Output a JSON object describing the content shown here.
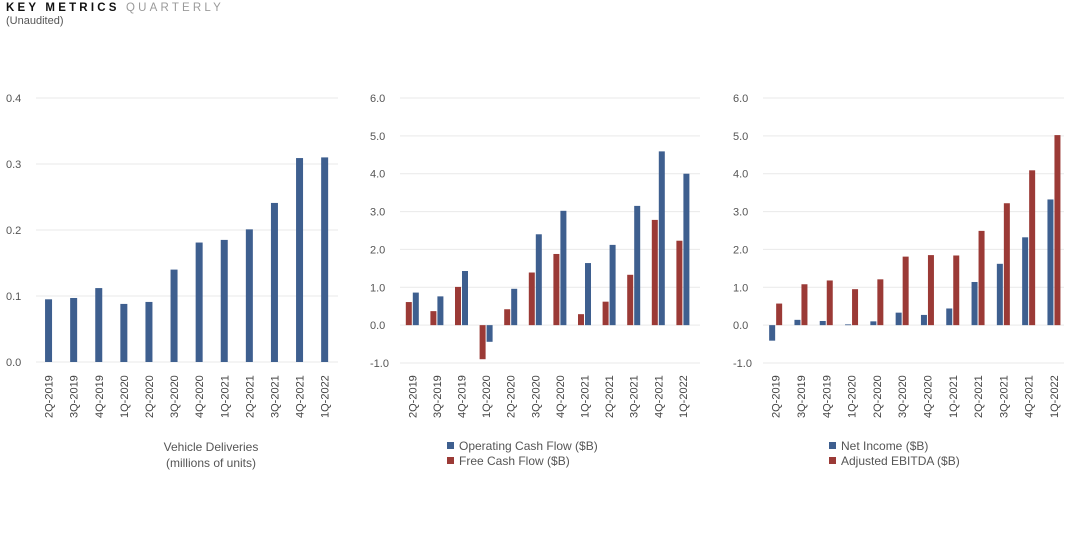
{
  "header": {
    "title_bold": "KEY METRICS",
    "title_light": "QUARTERLY",
    "subtitle": "(Unaudited)"
  },
  "colors": {
    "blue": "#3e5f8f",
    "red": "#9b3a36",
    "grid": "#e9e9e9"
  },
  "chart_data": [
    {
      "type": "bar",
      "categories": [
        "2Q-2019",
        "3Q-2019",
        "4Q-2019",
        "1Q-2020",
        "2Q-2020",
        "3Q-2020",
        "4Q-2020",
        "1Q-2021",
        "2Q-2021",
        "3Q-2021",
        "4Q-2021",
        "1Q-2022"
      ],
      "series": [
        {
          "name": "",
          "color": "#3e5f8f",
          "values": [
            0.095,
            0.097,
            0.112,
            0.088,
            0.091,
            0.14,
            0.181,
            0.185,
            0.201,
            0.241,
            0.309,
            0.31
          ]
        }
      ],
      "yticks": [
        "0.0",
        "0.1",
        "0.2",
        "0.3",
        "0.4"
      ],
      "ylim": [
        0,
        0.4
      ],
      "xlabel": [
        "Vehicle Deliveries",
        "(millions of units)"
      ],
      "grid": true
    },
    {
      "type": "bar",
      "categories": [
        "2Q-2019",
        "3Q-2019",
        "4Q-2019",
        "1Q-2020",
        "2Q-2020",
        "3Q-2020",
        "4Q-2020",
        "1Q-2021",
        "2Q-2021",
        "3Q-2021",
        "4Q-2021",
        "1Q-2022"
      ],
      "series": [
        {
          "name": "Free Cash Flow ($B)",
          "color": "#9b3a36",
          "values": [
            0.61,
            0.37,
            1.01,
            -0.9,
            0.42,
            1.39,
            1.88,
            0.29,
            0.62,
            1.33,
            2.78,
            2.23
          ]
        },
        {
          "name": "Operating Cash Flow ($B)",
          "color": "#3e5f8f",
          "values": [
            0.86,
            0.76,
            1.43,
            -0.44,
            0.96,
            2.4,
            3.02,
            1.64,
            2.12,
            3.15,
            4.59,
            4.0
          ]
        }
      ],
      "legend": [
        "Operating Cash Flow ($B)",
        "Free Cash Flow ($B)"
      ],
      "yticks": [
        "-1.0",
        "0.0",
        "1.0",
        "2.0",
        "3.0",
        "4.0",
        "5.0",
        "6.0"
      ],
      "ylim": [
        -1,
        6
      ],
      "grid": true
    },
    {
      "type": "bar",
      "categories": [
        "2Q-2019",
        "3Q-2019",
        "4Q-2019",
        "1Q-2020",
        "2Q-2020",
        "3Q-2020",
        "4Q-2020",
        "1Q-2021",
        "2Q-2021",
        "3Q-2021",
        "4Q-2021",
        "1Q-2022"
      ],
      "series": [
        {
          "name": "Net Income ($B)",
          "color": "#3e5f8f",
          "values": [
            -0.41,
            0.14,
            0.11,
            0.02,
            0.1,
            0.33,
            0.27,
            0.44,
            1.14,
            1.62,
            2.32,
            3.32
          ]
        },
        {
          "name": "Adjusted EBITDA ($B)",
          "color": "#9b3a36",
          "values": [
            0.57,
            1.08,
            1.18,
            0.95,
            1.21,
            1.81,
            1.85,
            1.84,
            2.49,
            3.22,
            4.09,
            5.02
          ]
        }
      ],
      "legend": [
        "Net Income ($B)",
        "Adjusted EBITDA ($B)"
      ],
      "yticks": [
        "-1.0",
        "0.0",
        "1.0",
        "2.0",
        "3.0",
        "4.0",
        "5.0",
        "6.0"
      ],
      "ylim": [
        -1,
        6
      ],
      "grid": true
    }
  ]
}
